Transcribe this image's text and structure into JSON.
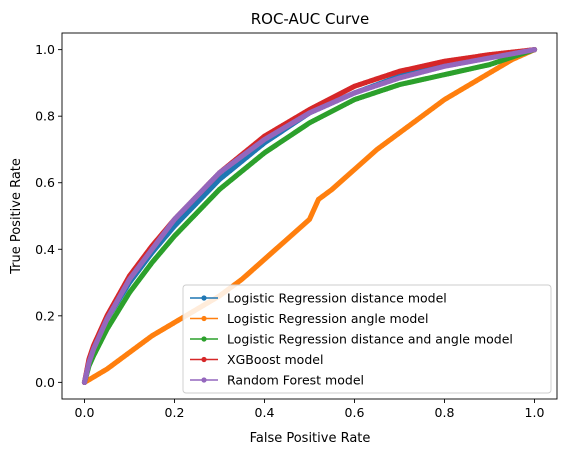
{
  "chart_data": {
    "type": "line",
    "title": "ROC-AUC Curve",
    "xlabel": "False Positive Rate",
    "ylabel": "True Positive Rate",
    "xlim": [
      -0.05,
      1.05
    ],
    "ylim": [
      -0.05,
      1.05
    ],
    "xticks": [
      "0.0",
      "0.2",
      "0.4",
      "0.6",
      "0.8",
      "1.0"
    ],
    "yticks": [
      "0.0",
      "0.2",
      "0.4",
      "0.6",
      "0.8",
      "1.0"
    ],
    "grid": false,
    "legend_position": "lower-right",
    "series": [
      {
        "name": "Logistic Regression distance model",
        "color": "#1f77b4",
        "x": [
          0,
          0.01,
          0.02,
          0.05,
          0.1,
          0.15,
          0.2,
          0.3,
          0.4,
          0.5,
          0.6,
          0.7,
          0.8,
          0.9,
          1.0
        ],
        "y": [
          0,
          0.06,
          0.1,
          0.19,
          0.3,
          0.39,
          0.47,
          0.61,
          0.72,
          0.81,
          0.87,
          0.92,
          0.955,
          0.98,
          1.0
        ]
      },
      {
        "name": "Logistic Regression angle model",
        "color": "#ff7f0e",
        "x": [
          0,
          0.05,
          0.1,
          0.15,
          0.2,
          0.25,
          0.3,
          0.35,
          0.4,
          0.45,
          0.5,
          0.52,
          0.55,
          0.6,
          0.65,
          0.7,
          0.75,
          0.8,
          0.85,
          0.9,
          0.95,
          1.0
        ],
        "y": [
          0,
          0.04,
          0.09,
          0.14,
          0.18,
          0.22,
          0.26,
          0.31,
          0.37,
          0.43,
          0.49,
          0.55,
          0.58,
          0.64,
          0.7,
          0.75,
          0.8,
          0.85,
          0.89,
          0.93,
          0.97,
          1.0
        ]
      },
      {
        "name": "Logistic Regression distance and angle model",
        "color": "#2ca02c",
        "x": [
          0,
          0.01,
          0.02,
          0.05,
          0.1,
          0.15,
          0.2,
          0.3,
          0.4,
          0.5,
          0.6,
          0.7,
          0.8,
          0.9,
          1.0
        ],
        "y": [
          0,
          0.05,
          0.08,
          0.16,
          0.27,
          0.36,
          0.44,
          0.58,
          0.69,
          0.78,
          0.85,
          0.895,
          0.925,
          0.955,
          1.0
        ]
      },
      {
        "name": "XGBoost model",
        "color": "#d62728",
        "x": [
          0,
          0.01,
          0.02,
          0.05,
          0.1,
          0.15,
          0.2,
          0.3,
          0.4,
          0.5,
          0.6,
          0.7,
          0.8,
          0.9,
          1.0
        ],
        "y": [
          0,
          0.07,
          0.11,
          0.2,
          0.32,
          0.41,
          0.49,
          0.63,
          0.74,
          0.82,
          0.89,
          0.935,
          0.965,
          0.985,
          1.0
        ]
      },
      {
        "name": "Random Forest model",
        "color": "#9467bd",
        "x": [
          0,
          0.01,
          0.02,
          0.05,
          0.1,
          0.15,
          0.2,
          0.3,
          0.4,
          0.5,
          0.6,
          0.7,
          0.8,
          0.9,
          1.0
        ],
        "y": [
          0,
          0.06,
          0.1,
          0.19,
          0.31,
          0.4,
          0.49,
          0.63,
          0.73,
          0.81,
          0.87,
          0.915,
          0.95,
          0.975,
          1.0
        ]
      }
    ]
  }
}
